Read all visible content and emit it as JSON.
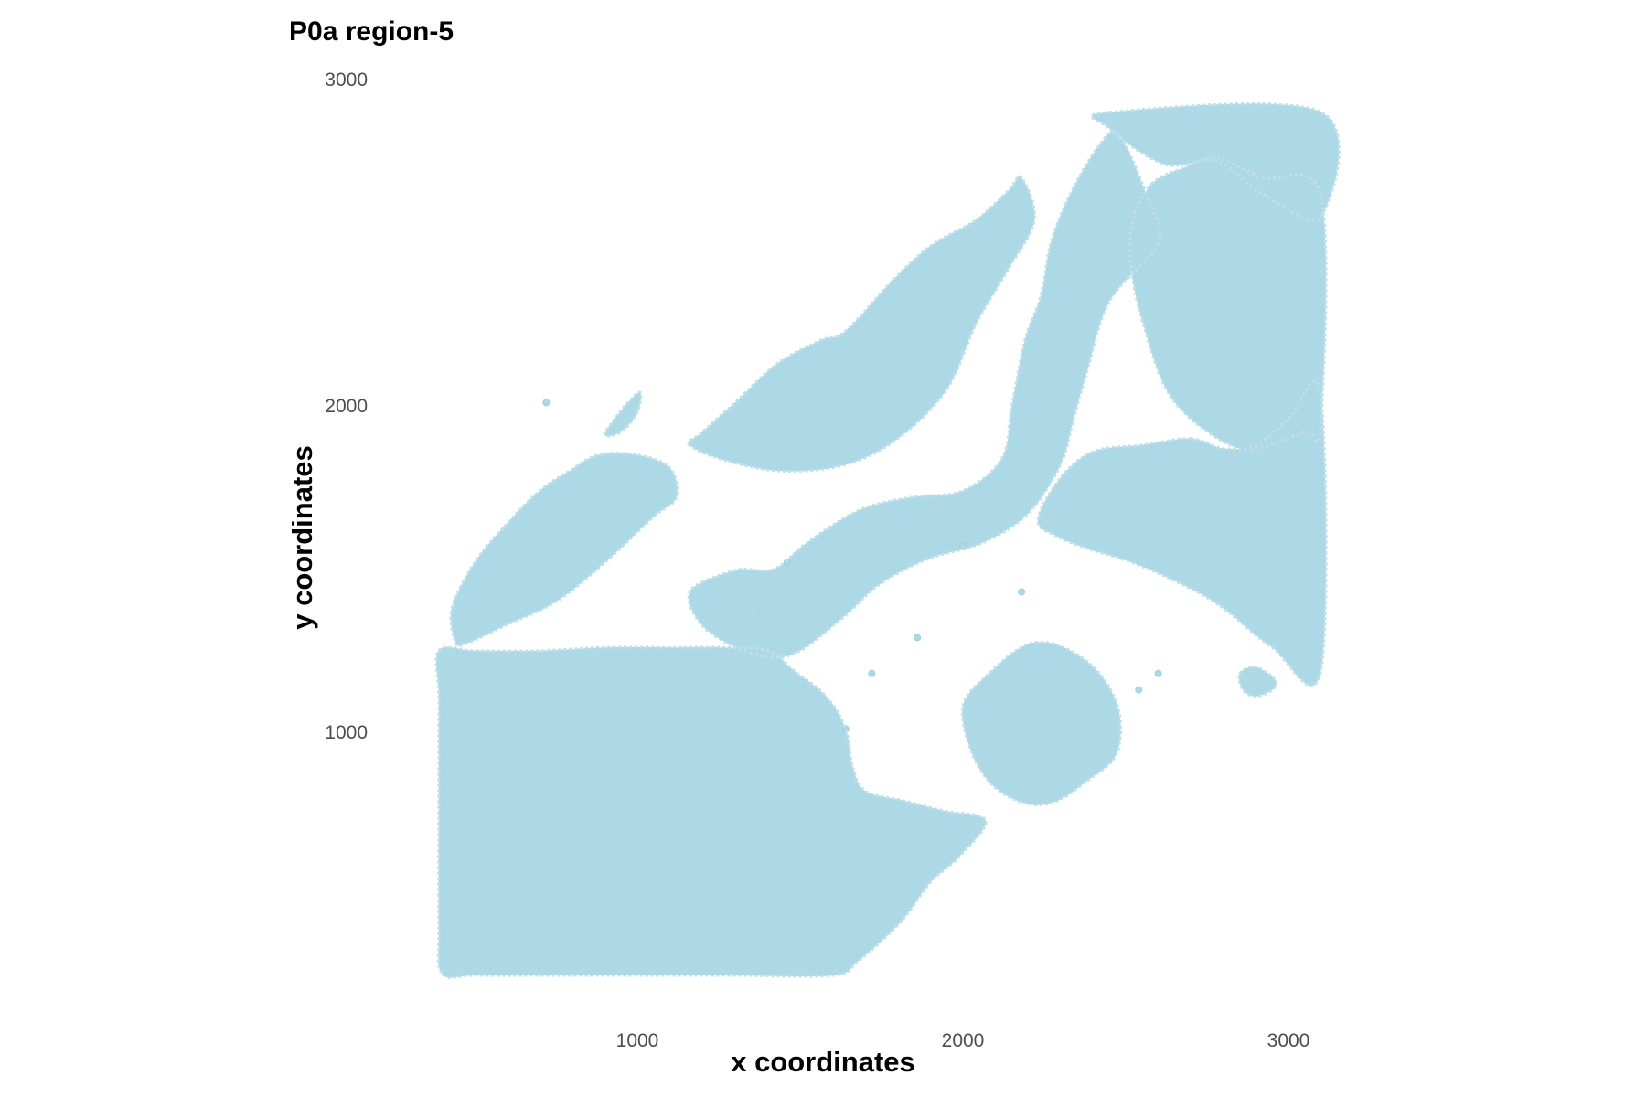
{
  "chart_data": {
    "type": "scatter",
    "title": "P0a region-5",
    "xlabel": "x coordinates",
    "ylabel": "y coordinates",
    "x_ticks": [
      1000,
      2000,
      3000
    ],
    "y_ticks": [
      1000,
      2000,
      3000
    ],
    "xlim": [
      390,
      3110
    ],
    "ylim": [
      250,
      3000
    ],
    "grid": false,
    "point_color": "#add8e6",
    "point_opacity": 0.6,
    "series": [
      {
        "regions": [
          {
            "polygon": [
              [
                440,
                1280
              ],
              [
                430,
                1380
              ],
              [
                500,
                1520
              ],
              [
                600,
                1640
              ],
              [
                700,
                1740
              ],
              [
                790,
                1800
              ],
              [
                880,
                1850
              ],
              [
                1000,
                1850
              ],
              [
                1100,
                1810
              ],
              [
                1120,
                1720
              ],
              [
                1050,
                1660
              ],
              [
                900,
                1520
              ],
              [
                750,
                1400
              ],
              [
                600,
                1330
              ],
              [
                470,
                1270
              ]
            ]
          },
          {
            "polygon": [
              [
                900,
                1910
              ],
              [
                930,
                1960
              ],
              [
                980,
                2020
              ],
              [
                1010,
                2040
              ],
              [
                1000,
                1980
              ],
              [
                950,
                1920
              ]
            ]
          },
          {
            "polygon": [
              [
                1160,
                1880
              ],
              [
                1200,
                1920
              ],
              [
                1300,
                2010
              ],
              [
                1430,
                2130
              ],
              [
                1560,
                2200
              ],
              [
                1640,
                2230
              ],
              [
                1780,
                2380
              ],
              [
                1900,
                2490
              ],
              [
                2040,
                2570
              ],
              [
                2140,
                2660
              ],
              [
                2180,
                2700
              ],
              [
                2220,
                2570
              ],
              [
                2140,
                2420
              ],
              [
                2040,
                2250
              ],
              [
                1950,
                2050
              ],
              [
                1800,
                1900
              ],
              [
                1640,
                1820
              ],
              [
                1450,
                1800
              ],
              [
                1280,
                1830
              ]
            ]
          },
          {
            "polygon": [
              [
                1200,
                1460
              ],
              [
                1250,
                1480
              ],
              [
                1320,
                1500
              ],
              [
                1420,
                1500
              ],
              [
                1520,
                1580
              ],
              [
                1680,
                1680
              ],
              [
                1840,
                1720
              ],
              [
                2000,
                1740
              ],
              [
                2120,
                1840
              ],
              [
                2150,
                2000
              ],
              [
                2190,
                2200
              ],
              [
                2240,
                2340
              ],
              [
                2270,
                2500
              ],
              [
                2330,
                2650
              ],
              [
                2420,
                2800
              ],
              [
                2480,
                2830
              ],
              [
                2570,
                2630
              ],
              [
                2600,
                2500
              ],
              [
                2450,
                2320
              ],
              [
                2380,
                2100
              ],
              [
                2340,
                1960
              ],
              [
                2300,
                1820
              ],
              [
                2200,
                1670
              ],
              [
                2060,
                1580
              ],
              [
                1890,
                1530
              ],
              [
                1740,
                1450
              ],
              [
                1630,
                1350
              ],
              [
                1480,
                1240
              ],
              [
                1360,
                1240
              ],
              [
                1230,
                1300
              ],
              [
                1170,
                1370
              ],
              [
                1160,
                1430
              ]
            ]
          },
          {
            "polygon": [
              [
                2450,
                2900
              ],
              [
                3100,
                2900
              ],
              [
                3100,
                2580
              ],
              [
                2920,
                2650
              ],
              [
                2780,
                2750
              ],
              [
                2620,
                2740
              ],
              [
                2450,
                2850
              ]
            ]
          },
          {
            "polygon": [
              [
                2580,
                2680
              ],
              [
                2680,
                2730
              ],
              [
                2780,
                2760
              ],
              [
                2920,
                2700
              ],
              [
                3100,
                2640
              ],
              [
                3100,
                1950
              ],
              [
                3050,
                1920
              ],
              [
                2900,
                1870
              ],
              [
                2820,
                1880
              ],
              [
                2700,
                1960
              ],
              [
                2620,
                2060
              ],
              [
                2560,
                2230
              ],
              [
                2520,
                2400
              ],
              [
                2520,
                2560
              ]
            ]
          },
          {
            "polygon": [
              [
                2700,
                1900
              ],
              [
                2800,
                1870
              ],
              [
                2900,
                1880
              ],
              [
                3000,
                1960
              ],
              [
                3100,
                2030
              ],
              [
                3100,
                1190
              ],
              [
                2950,
                1260
              ],
              [
                2800,
                1380
              ],
              [
                2680,
                1450
              ],
              [
                2520,
                1520
              ],
              [
                2390,
                1560
              ],
              [
                2290,
                1600
              ],
              [
                2230,
                1650
              ],
              [
                2300,
                1780
              ],
              [
                2400,
                1860
              ],
              [
                2550,
                1880
              ]
            ]
          },
          {
            "polygon": [
              [
                390,
                1250
              ],
              [
                500,
                1250
              ],
              [
                700,
                1250
              ],
              [
                900,
                1260
              ],
              [
                1100,
                1260
              ],
              [
                1250,
                1260
              ],
              [
                1400,
                1250
              ],
              [
                1480,
                1190
              ],
              [
                1580,
                1110
              ],
              [
                1640,
                1010
              ],
              [
                1660,
                900
              ],
              [
                1700,
                820
              ],
              [
                1820,
                790
              ],
              [
                1940,
                760
              ],
              [
                2070,
                730
              ],
              [
                1990,
                620
              ],
              [
                1900,
                540
              ],
              [
                1810,
                420
              ],
              [
                1680,
                300
              ],
              [
                1600,
                255
              ],
              [
                1300,
                255
              ],
              [
                1000,
                255
              ],
              [
                700,
                255
              ],
              [
                500,
                255
              ],
              [
                400,
                260
              ],
              [
                390,
                400
              ],
              [
                390,
                800
              ],
              [
                390,
                1100
              ]
            ]
          },
          {
            "polygon": [
              [
                2000,
                1080
              ],
              [
                2080,
                1180
              ],
              [
                2200,
                1270
              ],
              [
                2310,
                1260
              ],
              [
                2420,
                1180
              ],
              [
                2480,
                1060
              ],
              [
                2470,
                930
              ],
              [
                2380,
                850
              ],
              [
                2290,
                790
              ],
              [
                2200,
                780
              ],
              [
                2100,
                830
              ],
              [
                2030,
                930
              ]
            ]
          },
          {
            "polygon": [
              [
                2850,
                1180
              ],
              [
                2900,
                1200
              ],
              [
                2960,
                1160
              ],
              [
                2950,
                1130
              ],
              [
                2900,
                1110
              ],
              [
                2860,
                1130
              ]
            ]
          }
        ]
      }
    ]
  }
}
